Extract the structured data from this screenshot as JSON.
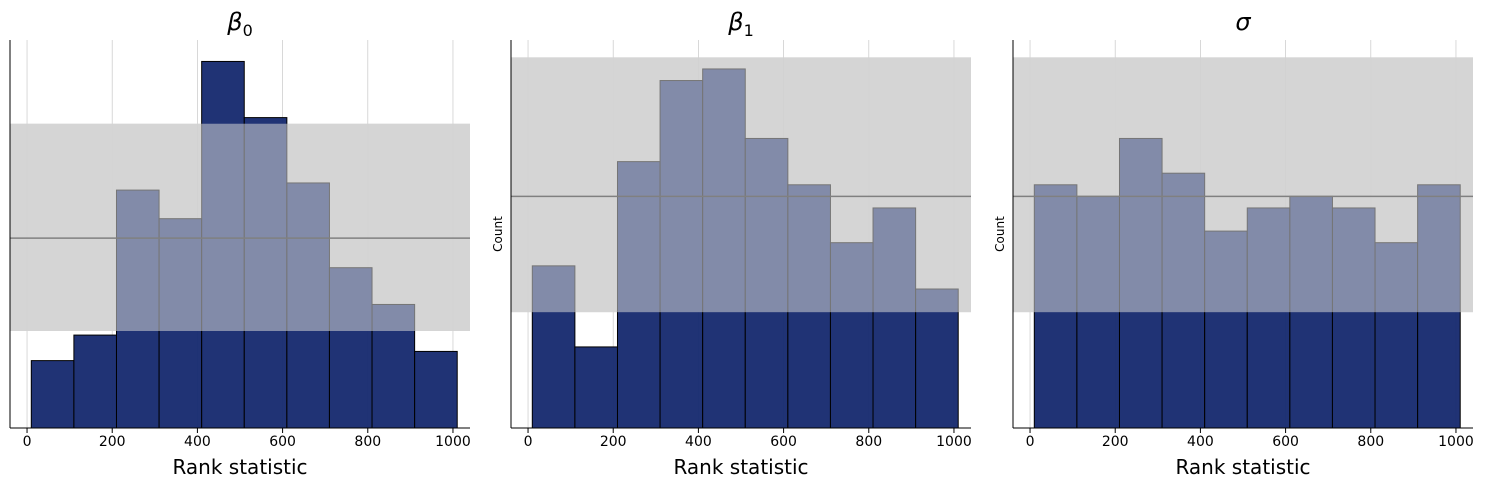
{
  "figure": {
    "bar_color": "#14286e",
    "band_color": "#d6d6d6",
    "center_line_color": "#808080",
    "grid_color": "#cfcfcf"
  },
  "chart_data": [
    {
      "type": "bar",
      "title": "β0",
      "title_base": "β",
      "title_sub": "0",
      "xlabel": "Rank statistic",
      "ylabel": "",
      "xlim": [
        -40,
        1040
      ],
      "ylim": [
        0,
        38
      ],
      "x_ticks": [
        0,
        200,
        400,
        600,
        800,
        1000
      ],
      "bin_edges": [
        10,
        110,
        210,
        310,
        410,
        510,
        610,
        710,
        810,
        910,
        1010
      ],
      "values": [
        6.6,
        9.1,
        23.3,
        20.5,
        35.9,
        30.4,
        24.0,
        15.7,
        12.1,
        7.5
      ],
      "band": [
        9.5,
        29.8
      ],
      "center_line": 18.6,
      "grid": "x only",
      "y_ticks_shown": false
    },
    {
      "type": "bar",
      "title": "β1",
      "title_base": "β",
      "title_sub": "1",
      "xlabel": "Rank statistic",
      "ylabel": "Count",
      "xlim": [
        -40,
        1040
      ],
      "ylim": [
        0,
        33.5
      ],
      "x_ticks": [
        0,
        200,
        400,
        600,
        800,
        1000
      ],
      "bin_edges": [
        10,
        110,
        210,
        310,
        410,
        510,
        610,
        710,
        810,
        910,
        1010
      ],
      "values": [
        14,
        7,
        23,
        30,
        31,
        25,
        21,
        16,
        19,
        12
      ],
      "band": [
        10,
        32
      ],
      "center_line": 20,
      "grid": "x only",
      "y_ticks_shown": false
    },
    {
      "type": "bar",
      "title": "σ",
      "title_base": "σ",
      "title_sub": "",
      "xlabel": "Rank statistic",
      "ylabel": "Count",
      "xlim": [
        -40,
        1040
      ],
      "ylim": [
        0,
        33.5
      ],
      "x_ticks": [
        0,
        200,
        400,
        600,
        800,
        1000
      ],
      "bin_edges": [
        10,
        110,
        210,
        310,
        410,
        510,
        610,
        710,
        810,
        910,
        1010
      ],
      "values": [
        21,
        20,
        25,
        22,
        17,
        19,
        20,
        19,
        16,
        21
      ],
      "band": [
        10,
        32
      ],
      "center_line": 20,
      "grid": "x only",
      "y_ticks_shown": false
    }
  ]
}
